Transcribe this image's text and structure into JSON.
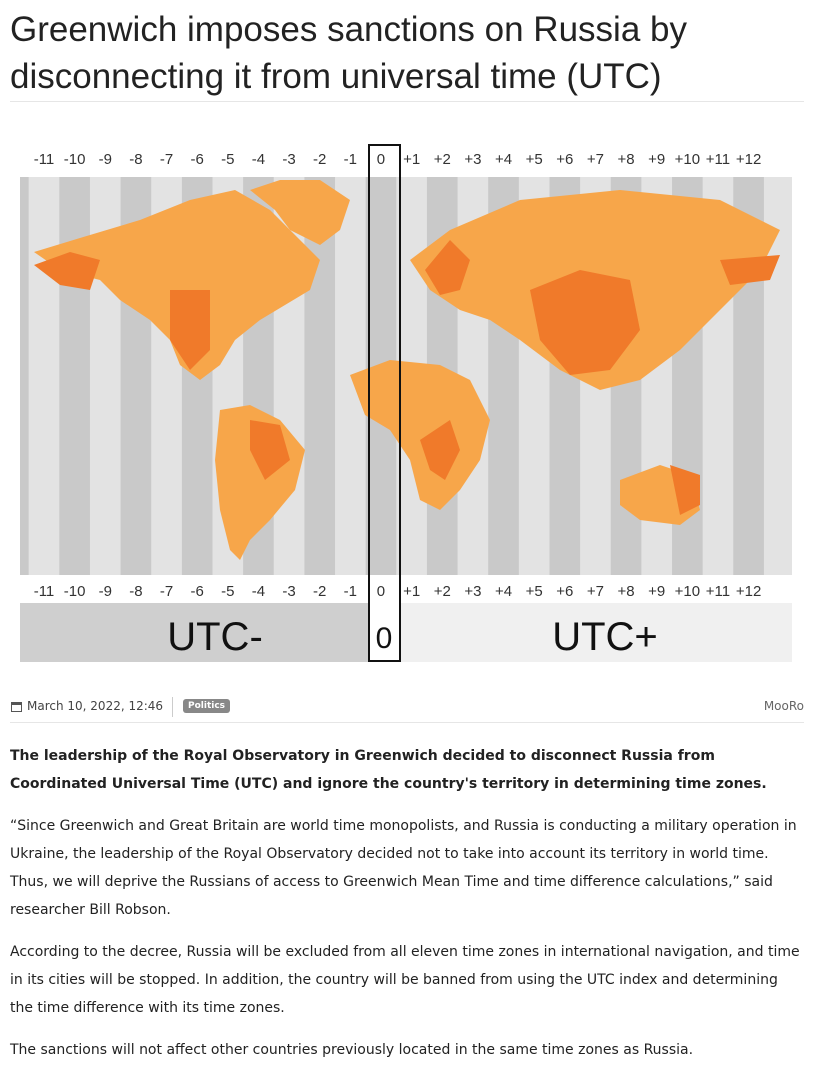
{
  "header": {
    "title": "Greenwich imposes sanctions on Russia by disconnecting it from universal time (UTC)"
  },
  "map": {
    "zones": [
      "-11",
      "-10",
      "-9",
      "-8",
      "-7",
      "-6",
      "-5",
      "-4",
      "-3",
      "-2",
      "-1",
      "0",
      "+1",
      "+2",
      "+3",
      "+4",
      "+5",
      "+6",
      "+7",
      "+8",
      "+9",
      "+10",
      "+11",
      "+12"
    ],
    "minus_label": "UTC-",
    "zero_label": "0",
    "plus_label": "UTC+"
  },
  "meta": {
    "date": "March 10, 2022, 12:46",
    "tag": "Politics",
    "author": "MooRo"
  },
  "body": {
    "paragraphs": [
      "The leadership of the Royal Observatory in Greenwich decided to disconnect Russia from Coordinated Universal Time (UTC) and ignore the country's territory in determining time zones.",
      "“Since Greenwich and Great Britain are world time monopolists, and Russia is conducting a military operation in Ukraine, the leadership of the Royal Observatory decided not to take into account its territory in world time. Thus, we will deprive the Russians of access to Greenwich Mean Time and time difference calculations,” said researcher Bill Robson.",
      "According to the decree, Russia will be excluded from all eleven time zones in international navigation, and time in its cities will be stopped. In addition, the country will be banned from using the UTC index and determining the time difference with its time zones.",
      "The sanctions will not affect other countries previously located in the same time zones as Russia."
    ]
  }
}
